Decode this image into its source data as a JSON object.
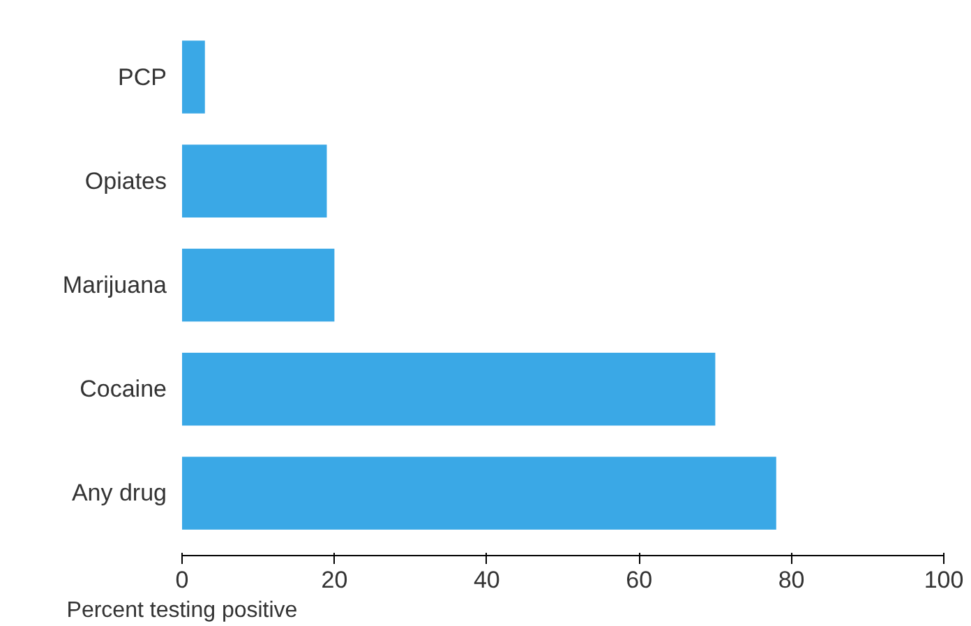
{
  "chart_data": {
    "type": "bar",
    "orientation": "horizontal",
    "categories": [
      "PCP",
      "Opiates",
      "Marijuana",
      "Cocaine",
      "Any drug"
    ],
    "values": [
      3,
      19,
      20,
      70,
      78
    ],
    "color": "#3aa8e6",
    "xlim": [
      0,
      100
    ],
    "xticks": [
      0,
      20,
      40,
      60,
      80,
      100
    ],
    "xlabel": "Percent testing positive"
  }
}
